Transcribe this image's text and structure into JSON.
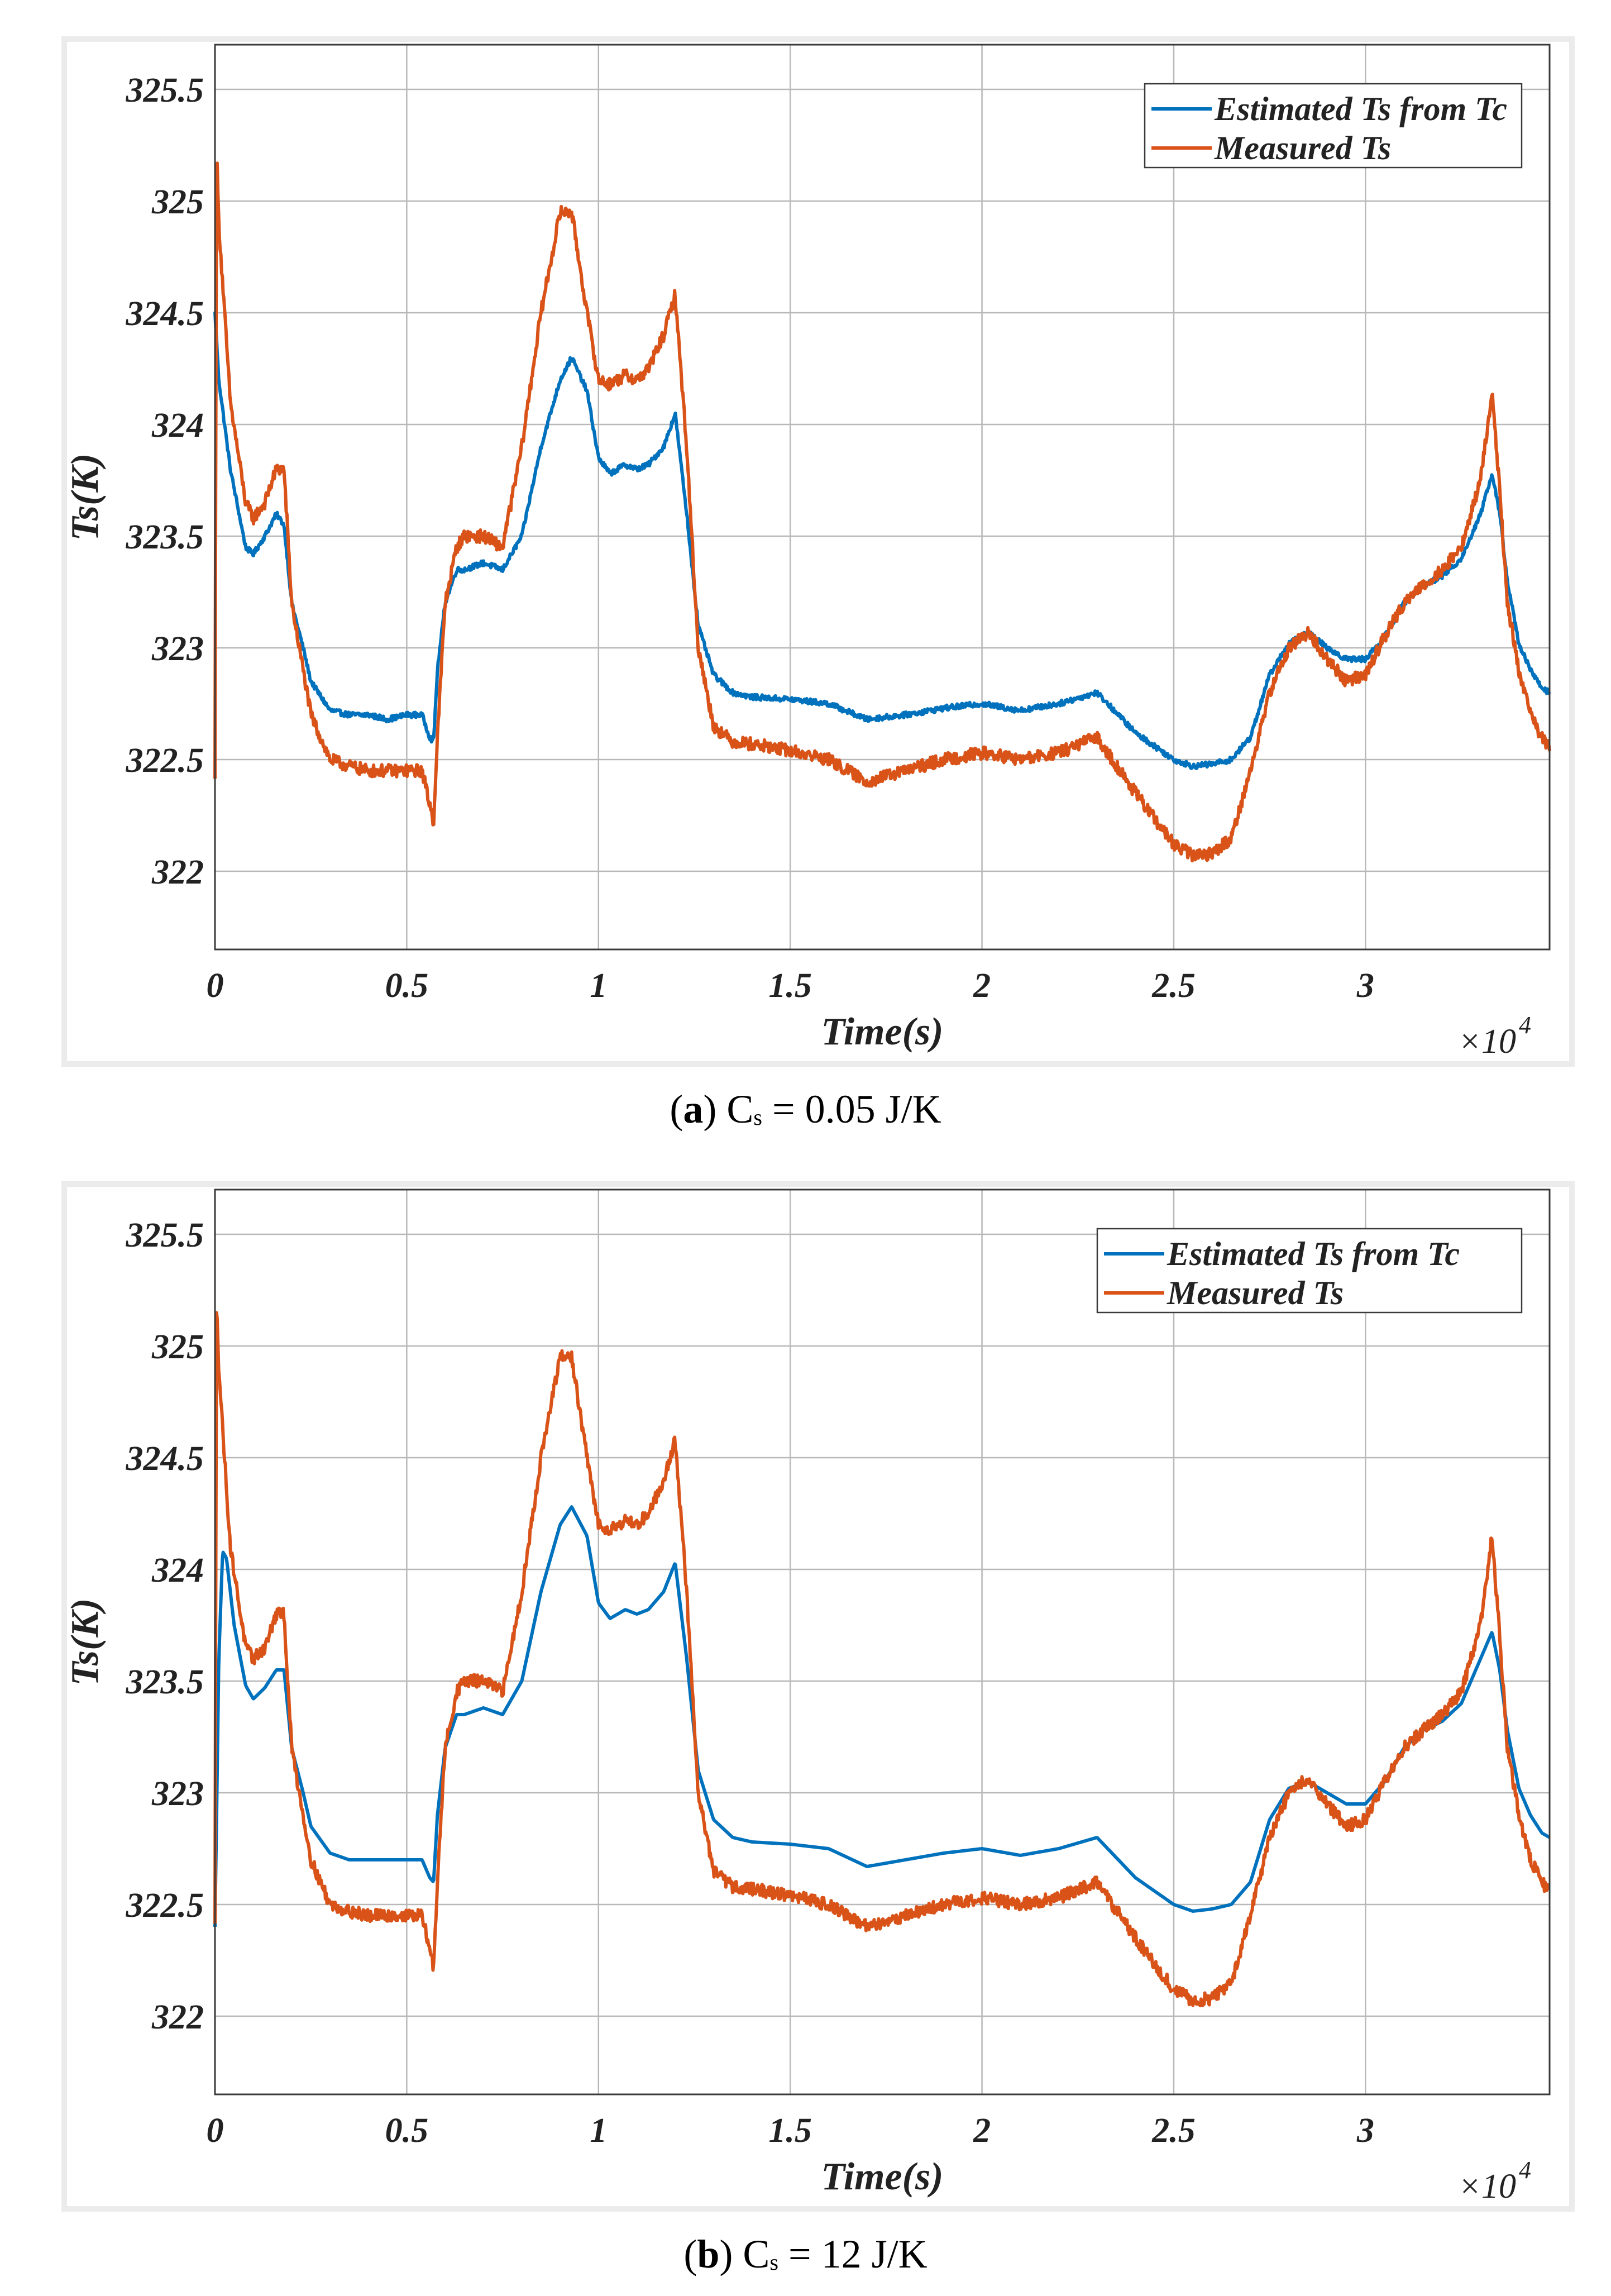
{
  "chart_data": [
    {
      "type": "line",
      "panel_letter": "a",
      "caption_symbol": "C",
      "caption_subscript": "s",
      "caption_value": " = 0.05 J/K",
      "xlabel": "Time(s)",
      "ylabel": "Ts(K)",
      "x_multiplier": "×10",
      "x_multiplier_exp": "4",
      "xlim": [
        0,
        3.48
      ],
      "ylim": [
        321.65,
        325.7
      ],
      "xticks": [
        0,
        0.5,
        1,
        1.5,
        2,
        2.5,
        3
      ],
      "xtick_labels": [
        "0",
        "0.5",
        "1",
        "1.5",
        "2",
        "2.5",
        "3"
      ],
      "yticks": [
        322,
        322.5,
        323,
        323.5,
        324,
        324.5,
        325,
        325.5
      ],
      "ytick_labels": [
        "322",
        "322.5",
        "323",
        "323.5",
        "324",
        "324.5",
        "325",
        "325.5"
      ],
      "grid": true,
      "legend_position": "top-right",
      "series": [
        {
          "name": "Estimated Ts from Tc",
          "color": "#0072BD",
          "noise": 0.012,
          "x": [
            0,
            0.01,
            0.04,
            0.08,
            0.1,
            0.13,
            0.16,
            0.18,
            0.2,
            0.23,
            0.25,
            0.3,
            0.35,
            0.4,
            0.45,
            0.5,
            0.54,
            0.56,
            0.57,
            0.58,
            0.6,
            0.63,
            0.65,
            0.7,
            0.75,
            0.8,
            0.85,
            0.9,
            0.93,
            0.97,
            1.0,
            1.03,
            1.07,
            1.1,
            1.13,
            1.17,
            1.2,
            1.23,
            1.26,
            1.3,
            1.35,
            1.4,
            1.5,
            1.6,
            1.7,
            1.8,
            1.9,
            2.0,
            2.1,
            2.2,
            2.3,
            2.4,
            2.5,
            2.55,
            2.6,
            2.65,
            2.7,
            2.75,
            2.8,
            2.85,
            2.9,
            2.95,
            3.0,
            3.05,
            3.1,
            3.15,
            3.2,
            3.25,
            3.3,
            3.33,
            3.35,
            3.37,
            3.4,
            3.43,
            3.46,
            3.48
          ],
          "y": [
            324.5,
            324.2,
            323.8,
            323.45,
            323.42,
            323.5,
            323.6,
            323.55,
            323.2,
            323.0,
            322.85,
            322.72,
            322.7,
            322.7,
            322.68,
            322.7,
            322.7,
            322.6,
            322.58,
            322.9,
            323.2,
            323.35,
            323.35,
            323.38,
            323.35,
            323.5,
            323.9,
            324.2,
            324.3,
            324.15,
            323.85,
            323.78,
            323.82,
            323.8,
            323.82,
            323.9,
            324.05,
            323.6,
            323.1,
            322.88,
            322.8,
            322.78,
            322.77,
            322.75,
            322.68,
            322.7,
            322.73,
            322.75,
            322.72,
            322.75,
            322.8,
            322.62,
            322.5,
            322.47,
            322.48,
            322.5,
            322.6,
            322.88,
            323.02,
            323.07,
            323.0,
            322.95,
            322.95,
            323.05,
            323.2,
            323.28,
            323.32,
            323.4,
            323.6,
            323.78,
            323.6,
            323.3,
            323.02,
            322.9,
            322.82,
            322.8
          ]
        },
        {
          "name": "Measured Ts",
          "color": "#D95319",
          "noise": 0.028,
          "x": [
            0,
            0.004,
            0.01,
            0.04,
            0.08,
            0.1,
            0.13,
            0.16,
            0.18,
            0.2,
            0.23,
            0.25,
            0.3,
            0.35,
            0.4,
            0.45,
            0.5,
            0.54,
            0.56,
            0.57,
            0.58,
            0.6,
            0.63,
            0.65,
            0.7,
            0.75,
            0.8,
            0.85,
            0.9,
            0.93,
            0.97,
            1.0,
            1.03,
            1.07,
            1.1,
            1.13,
            1.17,
            1.2,
            1.23,
            1.26,
            1.3,
            1.35,
            1.4,
            1.5,
            1.6,
            1.7,
            1.8,
            1.9,
            2.0,
            2.1,
            2.2,
            2.3,
            2.4,
            2.5,
            2.55,
            2.6,
            2.65,
            2.7,
            2.75,
            2.8,
            2.85,
            2.9,
            2.95,
            3.0,
            3.05,
            3.1,
            3.15,
            3.2,
            3.25,
            3.3,
            3.33,
            3.35,
            3.37,
            3.4,
            3.43,
            3.46,
            3.48
          ],
          "y": [
            322.4,
            325.25,
            324.9,
            324.1,
            323.65,
            323.58,
            323.65,
            323.8,
            323.8,
            323.2,
            322.9,
            322.7,
            322.5,
            322.47,
            322.45,
            322.45,
            322.45,
            322.45,
            322.3,
            322.22,
            322.6,
            323.2,
            323.45,
            323.5,
            323.5,
            323.45,
            323.9,
            324.5,
            324.95,
            324.95,
            324.5,
            324.2,
            324.18,
            324.22,
            324.2,
            324.25,
            324.4,
            324.58,
            323.9,
            323.0,
            322.65,
            322.58,
            322.57,
            322.54,
            322.5,
            322.4,
            322.45,
            322.5,
            322.53,
            322.5,
            322.53,
            322.6,
            322.35,
            322.12,
            322.07,
            322.08,
            322.15,
            322.45,
            322.8,
            323.0,
            323.07,
            322.95,
            322.85,
            322.88,
            323.05,
            323.2,
            323.28,
            323.35,
            323.45,
            323.75,
            324.15,
            323.7,
            323.2,
            322.9,
            322.7,
            322.6,
            322.55
          ]
        }
      ]
    },
    {
      "type": "line",
      "panel_letter": "b",
      "caption_symbol": "C",
      "caption_subscript": "s",
      "caption_value": " = 12 J/K",
      "xlabel": "Time(s)",
      "ylabel": "Ts(K)",
      "x_multiplier": "×10",
      "x_multiplier_exp": "4",
      "xlim": [
        0,
        3.48
      ],
      "ylim": [
        321.65,
        325.7
      ],
      "xticks": [
        0,
        0.5,
        1,
        1.5,
        2,
        2.5,
        3
      ],
      "xtick_labels": [
        "0",
        "0.5",
        "1",
        "1.5",
        "2",
        "2.5",
        "3"
      ],
      "yticks": [
        322,
        322.5,
        323,
        323.5,
        324,
        324.5,
        325,
        325.5
      ],
      "ytick_labels": [
        "322",
        "322.5",
        "323",
        "323.5",
        "324",
        "324.5",
        "325",
        "325.5"
      ],
      "grid": true,
      "legend_position": "top-right",
      "series": [
        {
          "name": "Estimated Ts from Tc",
          "color": "#0072BD",
          "noise": 0.0,
          "x": [
            0,
            0.01,
            0.02,
            0.03,
            0.05,
            0.08,
            0.1,
            0.13,
            0.16,
            0.18,
            0.2,
            0.23,
            0.25,
            0.3,
            0.35,
            0.4,
            0.45,
            0.5,
            0.54,
            0.56,
            0.57,
            0.58,
            0.6,
            0.63,
            0.65,
            0.7,
            0.75,
            0.8,
            0.85,
            0.9,
            0.93,
            0.97,
            1.0,
            1.03,
            1.07,
            1.1,
            1.13,
            1.17,
            1.2,
            1.23,
            1.26,
            1.3,
            1.35,
            1.4,
            1.5,
            1.6,
            1.7,
            1.8,
            1.9,
            2.0,
            2.1,
            2.2,
            2.3,
            2.4,
            2.5,
            2.55,
            2.6,
            2.65,
            2.7,
            2.75,
            2.8,
            2.85,
            2.9,
            2.95,
            3.0,
            3.05,
            3.1,
            3.15,
            3.2,
            3.25,
            3.3,
            3.33,
            3.35,
            3.37,
            3.4,
            3.43,
            3.46,
            3.48
          ],
          "y": [
            322.4,
            323.6,
            324.08,
            324.05,
            323.75,
            323.48,
            323.42,
            323.47,
            323.55,
            323.55,
            323.2,
            323.0,
            322.85,
            322.73,
            322.7,
            322.7,
            322.7,
            322.7,
            322.7,
            322.62,
            322.6,
            322.9,
            323.2,
            323.35,
            323.35,
            323.38,
            323.35,
            323.5,
            323.9,
            324.2,
            324.28,
            324.15,
            323.85,
            323.78,
            323.82,
            323.8,
            323.82,
            323.9,
            324.03,
            323.6,
            323.1,
            322.88,
            322.8,
            322.78,
            322.77,
            322.75,
            322.67,
            322.7,
            322.73,
            322.75,
            322.72,
            322.75,
            322.8,
            322.62,
            322.5,
            322.47,
            322.48,
            322.5,
            322.6,
            322.88,
            323.02,
            323.05,
            323.0,
            322.95,
            322.95,
            323.05,
            323.2,
            323.28,
            323.32,
            323.4,
            323.6,
            323.72,
            323.55,
            323.28,
            323.02,
            322.9,
            322.82,
            322.8
          ]
        },
        {
          "name": "Measured Ts",
          "color": "#D95319",
          "noise": 0.028,
          "x": [
            0,
            0.004,
            0.01,
            0.04,
            0.08,
            0.1,
            0.13,
            0.16,
            0.18,
            0.2,
            0.23,
            0.25,
            0.3,
            0.35,
            0.4,
            0.45,
            0.5,
            0.54,
            0.56,
            0.57,
            0.58,
            0.6,
            0.63,
            0.65,
            0.7,
            0.75,
            0.8,
            0.85,
            0.9,
            0.93,
            0.97,
            1.0,
            1.03,
            1.07,
            1.1,
            1.13,
            1.17,
            1.2,
            1.23,
            1.26,
            1.3,
            1.35,
            1.4,
            1.5,
            1.6,
            1.7,
            1.8,
            1.9,
            2.0,
            2.1,
            2.2,
            2.3,
            2.4,
            2.5,
            2.55,
            2.6,
            2.65,
            2.7,
            2.75,
            2.8,
            2.85,
            2.9,
            2.95,
            3.0,
            3.05,
            3.1,
            3.15,
            3.2,
            3.25,
            3.3,
            3.33,
            3.35,
            3.37,
            3.4,
            3.43,
            3.46,
            3.48
          ],
          "y": [
            322.4,
            325.25,
            324.9,
            324.1,
            323.65,
            323.6,
            323.65,
            323.8,
            323.8,
            323.2,
            322.9,
            322.7,
            322.5,
            322.47,
            322.45,
            322.45,
            322.45,
            322.45,
            322.3,
            322.22,
            322.6,
            323.2,
            323.45,
            323.5,
            323.5,
            323.45,
            323.9,
            324.5,
            324.95,
            324.95,
            324.5,
            324.2,
            324.18,
            324.22,
            324.2,
            324.25,
            324.4,
            324.58,
            323.9,
            323.0,
            322.65,
            322.58,
            322.57,
            322.54,
            322.5,
            322.4,
            322.45,
            322.5,
            322.53,
            322.5,
            322.53,
            322.6,
            322.35,
            322.12,
            322.07,
            322.08,
            322.15,
            322.45,
            322.8,
            323.0,
            323.07,
            322.95,
            322.85,
            322.88,
            323.05,
            323.2,
            323.28,
            323.35,
            323.45,
            323.75,
            324.15,
            323.7,
            323.2,
            322.9,
            322.7,
            322.6,
            322.55
          ]
        }
      ]
    }
  ]
}
